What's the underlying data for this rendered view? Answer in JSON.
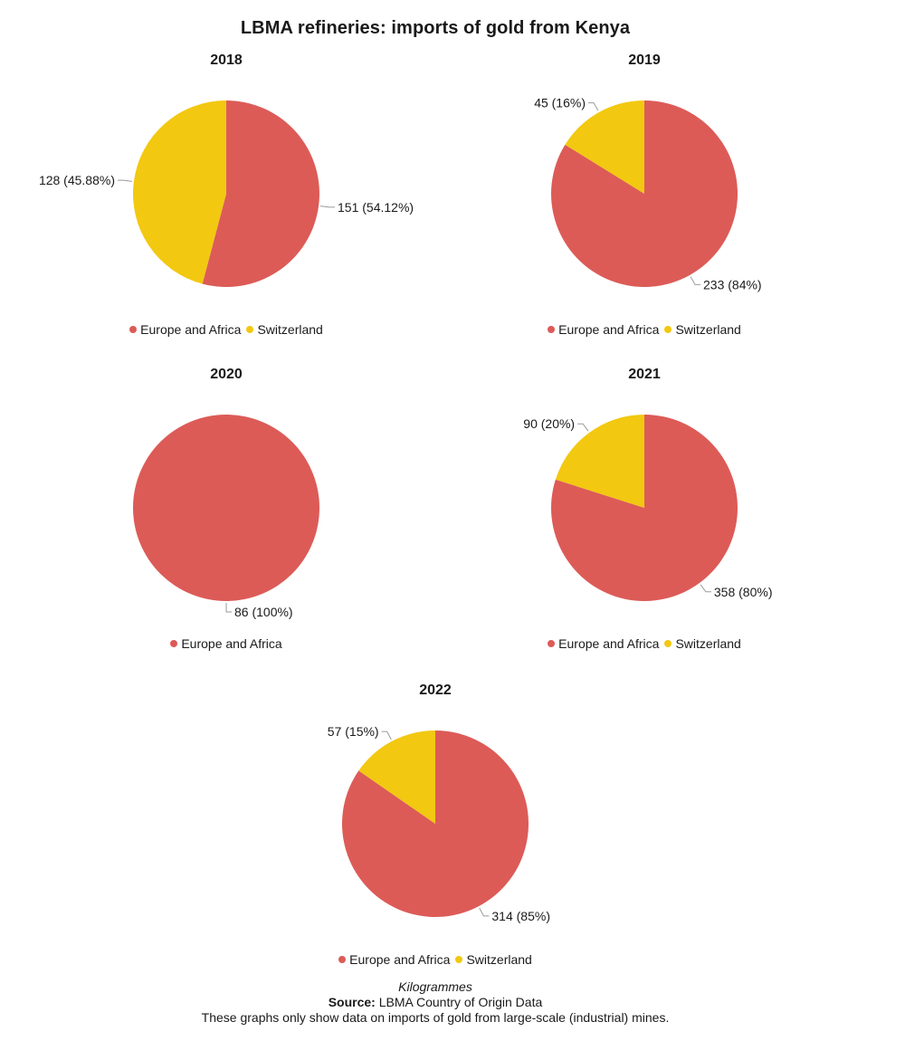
{
  "title": "LBMA refineries: imports of gold from Kenya",
  "colors": {
    "Europe and Africa": "#dc5b57",
    "Switzerland": "#f2c811",
    "leader_line": "#9a9a9a"
  },
  "chart_data": [
    {
      "type": "pie",
      "title": "2018",
      "slices": [
        {
          "name": "Europe and Africa",
          "value": 151,
          "percent": 54.12,
          "label": "151 (54.12%)"
        },
        {
          "name": "Switzerland",
          "value": 128,
          "percent": 45.88,
          "label": "128 (45.88%)"
        }
      ],
      "legend": [
        "Europe and Africa",
        "Switzerland"
      ]
    },
    {
      "type": "pie",
      "title": "2019",
      "slices": [
        {
          "name": "Europe and Africa",
          "value": 233,
          "percent": 84,
          "label": "233 (84%)"
        },
        {
          "name": "Switzerland",
          "value": 45,
          "percent": 16,
          "label": "45 (16%)"
        }
      ],
      "legend": [
        "Europe and Africa",
        "Switzerland"
      ]
    },
    {
      "type": "pie",
      "title": "2020",
      "slices": [
        {
          "name": "Europe and Africa",
          "value": 86,
          "percent": 100,
          "label": "86 (100%)"
        }
      ],
      "legend": [
        "Europe and Africa"
      ]
    },
    {
      "type": "pie",
      "title": "2021",
      "slices": [
        {
          "name": "Europe and Africa",
          "value": 358,
          "percent": 80,
          "label": "358 (80%)"
        },
        {
          "name": "Switzerland",
          "value": 90,
          "percent": 20,
          "label": "90 (20%)"
        }
      ],
      "legend": [
        "Europe and Africa",
        "Switzerland"
      ]
    },
    {
      "type": "pie",
      "title": "2022",
      "slices": [
        {
          "name": "Europe and Africa",
          "value": 314,
          "percent": 85,
          "label": "314 (85%)"
        },
        {
          "name": "Switzerland",
          "value": 57,
          "percent": 15,
          "label": "57 (15%)"
        }
      ],
      "legend": [
        "Europe and Africa",
        "Switzerland"
      ]
    }
  ],
  "footer": {
    "units": "Kilogrammes",
    "source_label": "Source:",
    "source_text": " LBMA Country of Origin Data",
    "note": "These graphs only show data on imports of gold from large-scale (industrial) mines."
  }
}
